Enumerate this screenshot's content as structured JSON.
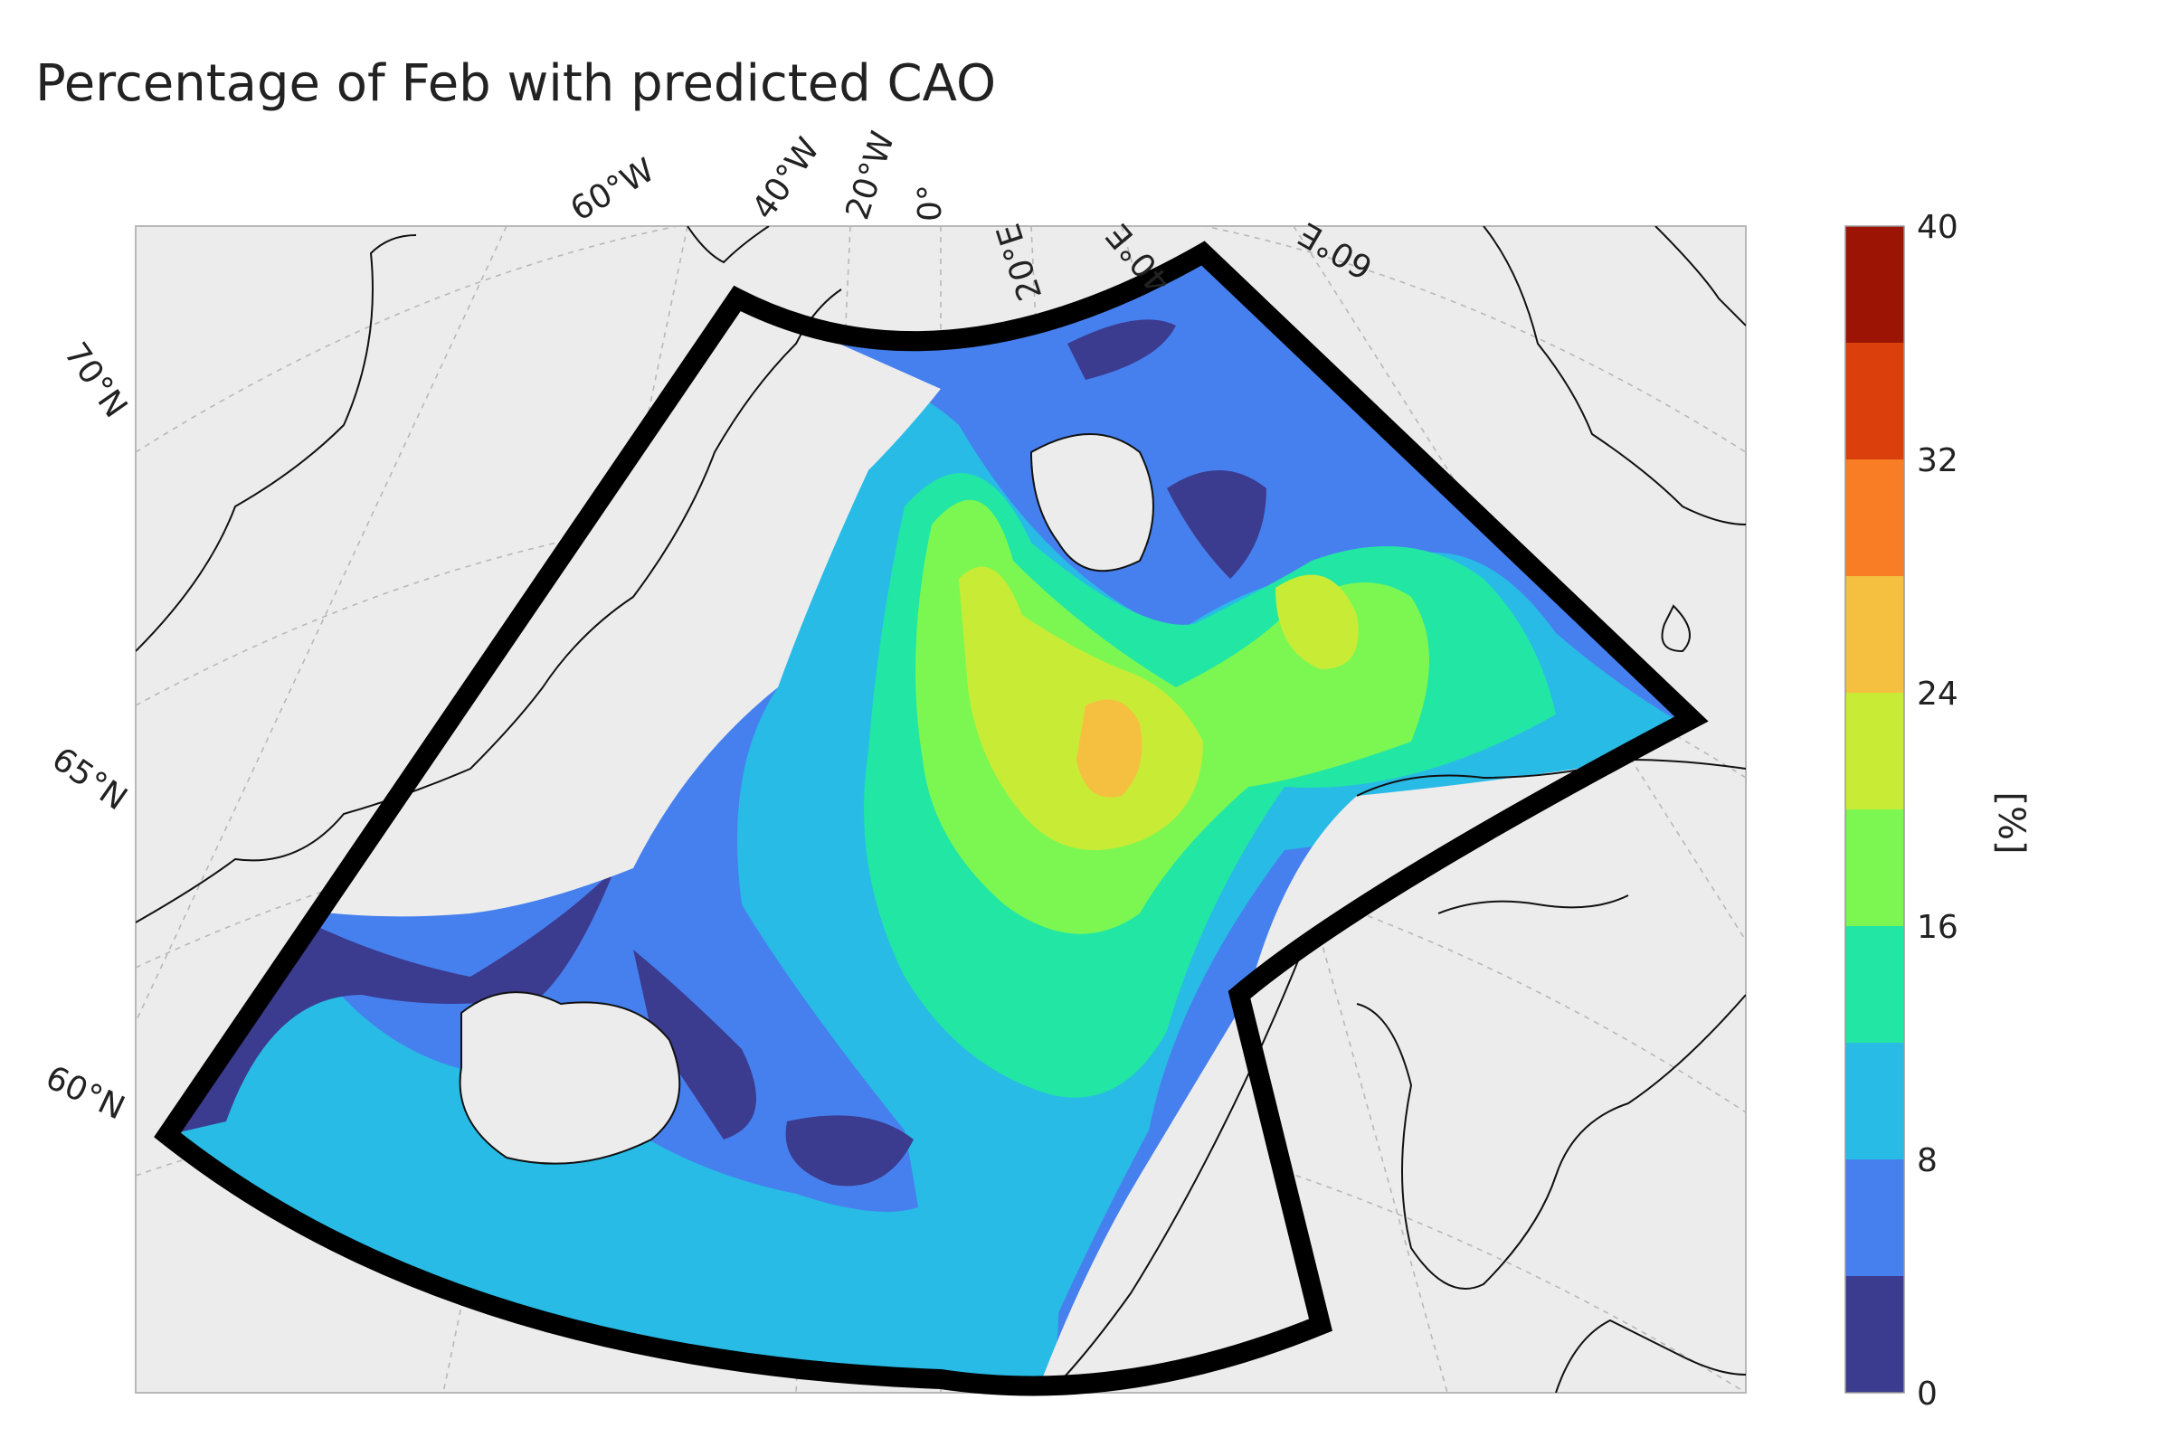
{
  "title": "Percentage of Feb with predicted CAO",
  "longitude_labels": [
    "60°W",
    "40°W",
    "20°W",
    "0°",
    "20°E",
    "40°E",
    "60°E"
  ],
  "latitude_labels": [
    "70°N",
    "65°N",
    "60°N"
  ],
  "colorbar": {
    "label": "[%]",
    "ticks": [
      "0",
      "8",
      "16",
      "24",
      "32",
      "40"
    ],
    "range": [
      0,
      40
    ],
    "levels": [
      0,
      4,
      8,
      12,
      16,
      20,
      24,
      28,
      32,
      36,
      40
    ],
    "colors": [
      "#3b3b8f",
      "#4680ee",
      "#28bbe6",
      "#22e6a4",
      "#7cf752",
      "#c8ec35",
      "#f5c040",
      "#f97d24",
      "#da3f0c",
      "#9c1404"
    ]
  },
  "colors": {
    "background": "#ececec",
    "land_outline": "#111111",
    "domain_boundary": "#000000",
    "graticule": "#b8b8b8"
  }
}
